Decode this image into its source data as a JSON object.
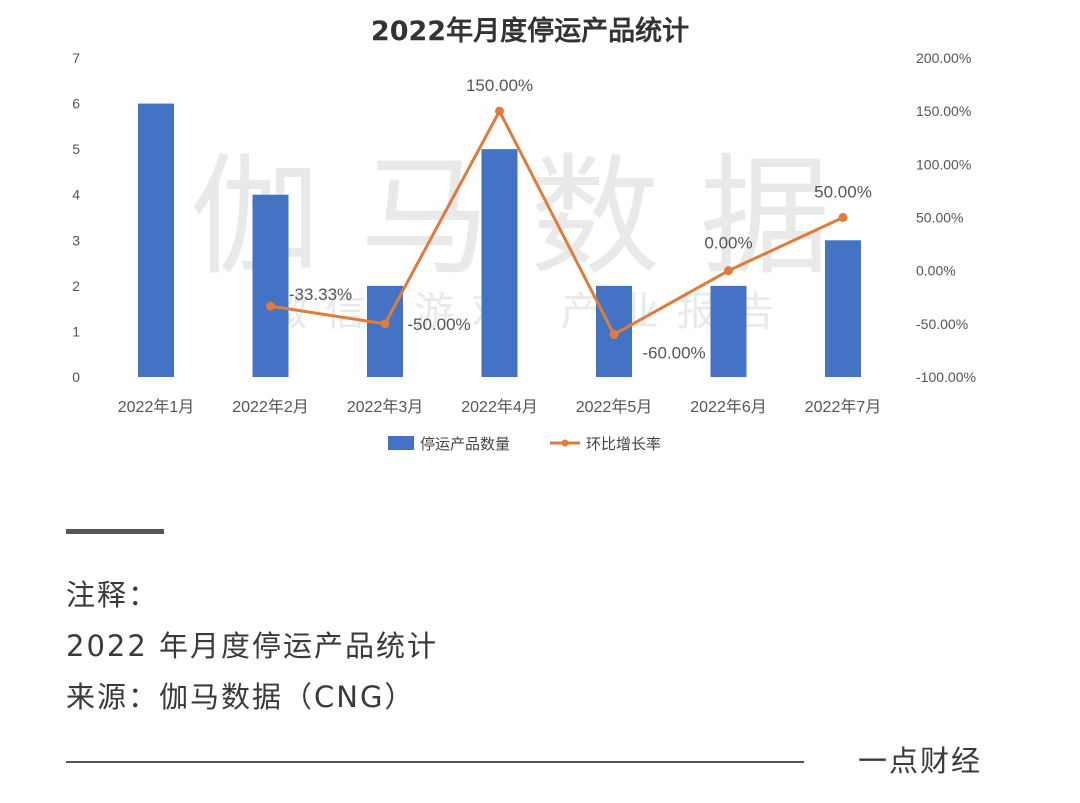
{
  "watermark": {
    "main": "伽马数据",
    "sub": "微信 游戏 产业报告"
  },
  "chart_data": {
    "type": "bar",
    "title": "2022年月度停运产品统计",
    "categories": [
      "2022年1月",
      "2022年2月",
      "2022年3月",
      "2022年4月",
      "2022年5月",
      "2022年6月",
      "2022年7月"
    ],
    "series": [
      {
        "name": "停运产品数量",
        "type": "bar",
        "axis": "left",
        "color": "#4472c4",
        "values": [
          6,
          4,
          2,
          5,
          2,
          2,
          3
        ]
      },
      {
        "name": "环比增长率",
        "type": "line",
        "axis": "right",
        "color": "#e07b39",
        "values": [
          null,
          -33.33,
          -50.0,
          150.0,
          -60.0,
          0.0,
          50.0
        ],
        "labels": [
          "",
          "-33.33%",
          "-50.00%",
          "150.00%",
          "-60.00%",
          "0.00%",
          "50.00%"
        ]
      }
    ],
    "y_left": {
      "range": [
        0,
        7
      ],
      "ticks": [
        0,
        1,
        2,
        3,
        4,
        5,
        6,
        7
      ],
      "tick_labels": [
        "0",
        "1",
        "2",
        "3",
        "4",
        "5",
        "6",
        "7"
      ]
    },
    "y_right": {
      "range": [
        -100,
        200
      ],
      "ticks": [
        -100,
        -50,
        0,
        50,
        100,
        150,
        200
      ],
      "tick_labels": [
        "-100.00%",
        "-50.00%",
        "0.00%",
        "50.00%",
        "100.00%",
        "150.00%",
        "200.00%"
      ]
    },
    "grid": false,
    "legend_position": "bottom"
  },
  "notes": {
    "heading": "注释：",
    "caption": "2022 年月度停运产品统计",
    "source": "来源：伽马数据（CNG）"
  },
  "brand": "一点财经"
}
